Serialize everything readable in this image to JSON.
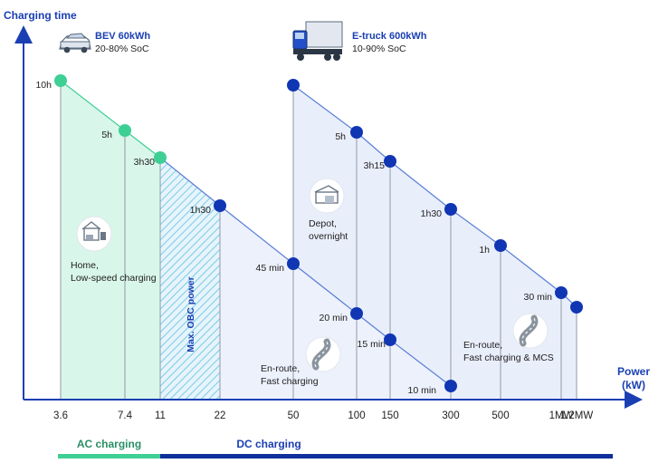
{
  "colors": {
    "axis": "#1a3fb3",
    "bev_point": "#3ecf95",
    "bev_fill": "#d9f6ea",
    "obc_hatch": "#6fc6e8",
    "dc_point": "#1036b4",
    "dc_line": "#5a7fd8",
    "dc_fill": "#e9eefb",
    "ac_band": "#3ecf95",
    "dc_band": "#0f2f9a",
    "drop_line": "#8e9aa6"
  },
  "chart_data": {
    "type": "line",
    "xlabel": "Power\n(kW)",
    "ylabel": "Charging time",
    "x_scale": "categorical",
    "categories": [
      "3.6",
      "7.4",
      "11",
      "22",
      "50",
      "100",
      "150",
      "300",
      "500",
      "1MW",
      "1.2MW"
    ],
    "series": [
      {
        "name": "BEV 60kWh",
        "subtitle": "20-80% SoC",
        "points": [
          {
            "x": "3.6",
            "label": "10h"
          },
          {
            "x": "7.4",
            "label": "5h"
          },
          {
            "x": "11",
            "label": "3h30"
          },
          {
            "x": "22",
            "label": "1h30"
          },
          {
            "x": "50",
            "label": "45 min"
          },
          {
            "x": "100",
            "label": "20 min"
          },
          {
            "x": "150",
            "label": "15 min"
          },
          {
            "x": "300",
            "label": "10 min"
          }
        ]
      },
      {
        "name": "E-truck 600kWh",
        "subtitle": "10-90% SoC",
        "points": [
          {
            "x": "50",
            "label": ""
          },
          {
            "x": "100",
            "label": "5h"
          },
          {
            "x": "150",
            "label": "3h15"
          },
          {
            "x": "300",
            "label": "1h30"
          },
          {
            "x": "500",
            "label": "1h"
          },
          {
            "x": "1MW",
            "label": "30 min"
          },
          {
            "x": "1.2MW",
            "label": ""
          }
        ]
      }
    ],
    "annotations": [
      {
        "text": [
          "Home,",
          "Low-speed charging"
        ],
        "icon": "home-charger-icon"
      },
      {
        "text": [
          "Max. OBC power"
        ],
        "icon": ""
      },
      {
        "text": [
          "Depot,",
          "overnight"
        ],
        "icon": "depot-icon"
      },
      {
        "text": [
          "En-route,",
          "Fast charging"
        ],
        "icon": "road-icon"
      },
      {
        "text": [
          "En-route,",
          "Fast charging & MCS"
        ],
        "icon": "road-icon"
      }
    ],
    "bands": [
      {
        "label": "AC charging",
        "from": "3.6",
        "to": "11"
      },
      {
        "label": "DC charging",
        "from": "11",
        "to": "1.2MW"
      }
    ],
    "grid": false,
    "legend": "none"
  }
}
